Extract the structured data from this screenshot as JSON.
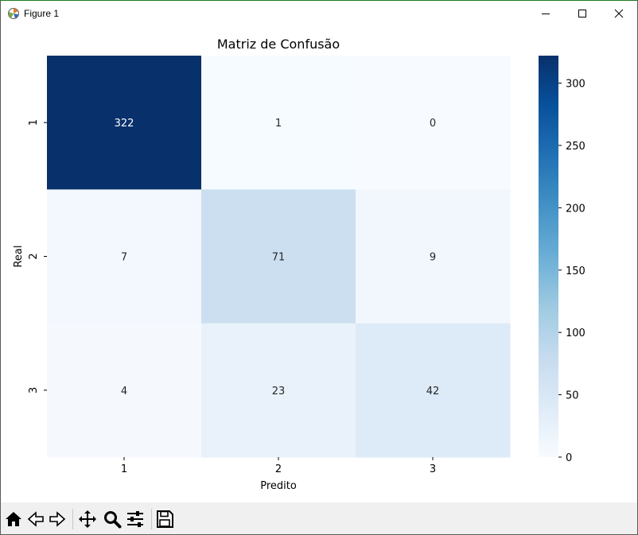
{
  "window": {
    "title": "Figure 1"
  },
  "toolbar": {
    "items": [
      {
        "icon": "home-icon"
      },
      {
        "icon": "back-arrow-icon"
      },
      {
        "icon": "forward-arrow-icon"
      },
      {
        "icon": "pan-move-icon"
      },
      {
        "icon": "zoom-magnifier-icon"
      },
      {
        "icon": "configure-subplots-icon"
      },
      {
        "icon": "save-floppy-icon"
      }
    ]
  },
  "chart_data": {
    "type": "heatmap",
    "title": "Matriz de Confusão",
    "xlabel": "Predito",
    "ylabel": "Real",
    "x_categories": [
      "1",
      "2",
      "3"
    ],
    "y_categories": [
      "1",
      "2",
      "3"
    ],
    "values": [
      [
        322,
        1,
        0
      ],
      [
        7,
        71,
        9
      ],
      [
        4,
        23,
        42
      ]
    ],
    "colormap": "Blues",
    "vmin": 0,
    "vmax": 322,
    "colorbar_ticks": [
      0,
      50,
      100,
      150,
      200,
      250,
      300
    ],
    "annotations": true
  }
}
